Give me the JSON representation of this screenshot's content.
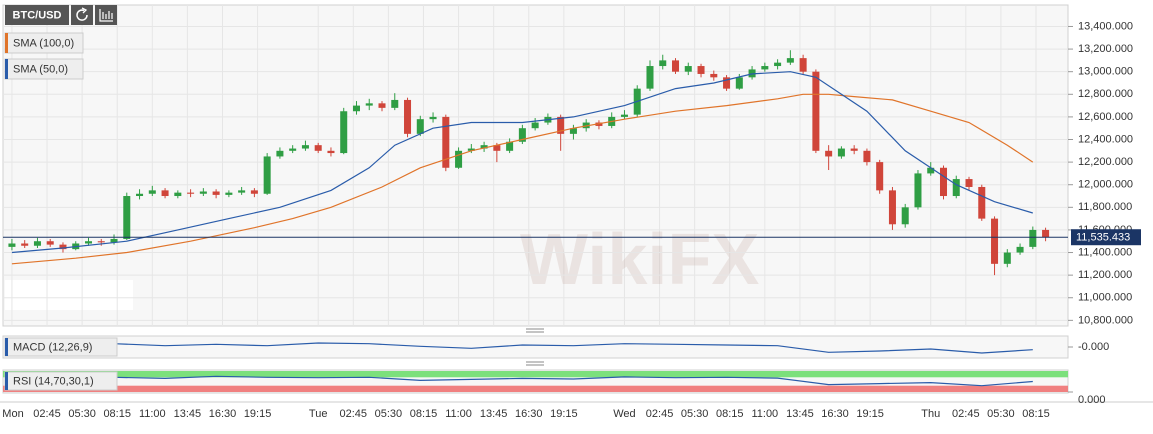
{
  "header": {
    "symbol": "BTC/USD"
  },
  "chart_data": [
    {
      "type": "candlestick",
      "watermark": "WikiFX",
      "up_color": "#2f9e44",
      "down_color": "#d0453a",
      "grid": true,
      "xlim": [
        -0.7,
        82.6
      ],
      "xticks": [
        {
          "value": 0,
          "label": "Mon"
        },
        {
          "value": 2.75,
          "label": "02:45"
        },
        {
          "value": 5.5,
          "label": "05:30"
        },
        {
          "value": 8.25,
          "label": "08:15"
        },
        {
          "value": 11,
          "label": "11:00"
        },
        {
          "value": 13.75,
          "label": "13:45"
        },
        {
          "value": 16.5,
          "label": "16:30"
        },
        {
          "value": 19.25,
          "label": "19:15"
        },
        {
          "value": 24,
          "label": "Tue"
        },
        {
          "value": 26.75,
          "label": "02:45"
        },
        {
          "value": 29.5,
          "label": "05:30"
        },
        {
          "value": 32.25,
          "label": "08:15"
        },
        {
          "value": 35,
          "label": "11:00"
        },
        {
          "value": 37.75,
          "label": "13:45"
        },
        {
          "value": 40.5,
          "label": "16:30"
        },
        {
          "value": 43.25,
          "label": "19:15"
        },
        {
          "value": 48,
          "label": "Wed"
        },
        {
          "value": 50.75,
          "label": "02:45"
        },
        {
          "value": 53.5,
          "label": "05:30"
        },
        {
          "value": 56.25,
          "label": "08:15"
        },
        {
          "value": 59,
          "label": "11:00"
        },
        {
          "value": 61.75,
          "label": "13:45"
        },
        {
          "value": 64.5,
          "label": "16:30"
        },
        {
          "value": 67.25,
          "label": "19:15"
        },
        {
          "value": 72,
          "label": "Thu"
        },
        {
          "value": 74.75,
          "label": "02:45"
        },
        {
          "value": 77.5,
          "label": "05:30"
        },
        {
          "value": 80.25,
          "label": "08:15"
        }
      ],
      "ylim": [
        10750,
        13590
      ],
      "yticks": [
        {
          "value": 10800,
          "label": "10,800.000"
        },
        {
          "value": 11000,
          "label": "11,000.000"
        },
        {
          "value": 11200,
          "label": "11,200.000"
        },
        {
          "value": 11400,
          "label": "11,400.000"
        },
        {
          "value": 11600,
          "label": "11,600.000"
        },
        {
          "value": 11800,
          "label": "11,800.000"
        },
        {
          "value": 12000,
          "label": "12,000.000"
        },
        {
          "value": 12200,
          "label": "12,200.000"
        },
        {
          "value": 12400,
          "label": "12,400.000"
        },
        {
          "value": 12600,
          "label": "12,600.000"
        },
        {
          "value": 12800,
          "label": "12,800.000"
        },
        {
          "value": 13000,
          "label": "13,000.000"
        },
        {
          "value": 13200,
          "label": "13,200.000"
        },
        {
          "value": 13400,
          "label": "13,400.000"
        }
      ],
      "last": {
        "value": 11535.433,
        "label": "11,535.433"
      },
      "x": [
        0,
        1,
        2,
        3,
        4,
        5,
        6,
        7,
        8,
        9,
        10,
        11,
        12,
        13,
        14,
        15,
        16,
        17,
        18,
        19,
        20,
        21,
        22,
        23,
        24,
        25,
        26,
        27,
        28,
        29,
        30,
        31,
        32,
        33,
        34,
        35,
        36,
        37,
        38,
        39,
        40,
        41,
        42,
        43,
        44,
        45,
        46,
        47,
        48,
        49,
        50,
        51,
        52,
        53,
        54,
        55,
        56,
        57,
        58,
        59,
        60,
        61,
        62,
        63,
        64,
        65,
        66,
        67,
        68,
        69,
        70,
        71,
        72,
        73,
        74,
        75,
        76,
        77,
        78,
        79,
        80,
        81
      ],
      "ohlc": [
        [
          11450,
          11520,
          11420,
          11480
        ],
        [
          11480,
          11510,
          11440,
          11460
        ],
        [
          11460,
          11530,
          11440,
          11500
        ],
        [
          11500,
          11520,
          11450,
          11470
        ],
        [
          11470,
          11490,
          11400,
          11430
        ],
        [
          11430,
          11500,
          11420,
          11480
        ],
        [
          11480,
          11530,
          11460,
          11500
        ],
        [
          11500,
          11520,
          11460,
          11490
        ],
        [
          11490,
          11560,
          11470,
          11520
        ],
        [
          11520,
          11930,
          11510,
          11900
        ],
        [
          11900,
          11960,
          11870,
          11920
        ],
        [
          11920,
          11990,
          11900,
          11950
        ],
        [
          11950,
          11970,
          11880,
          11900
        ],
        [
          11900,
          11950,
          11880,
          11930
        ],
        [
          11930,
          11960,
          11890,
          11920
        ],
        [
          11920,
          11970,
          11900,
          11940
        ],
        [
          11940,
          11960,
          11880,
          11910
        ],
        [
          11910,
          11950,
          11890,
          11930
        ],
        [
          11930,
          11980,
          11910,
          11950
        ],
        [
          11950,
          11970,
          11890,
          11920
        ],
        [
          11920,
          12280,
          11910,
          12250
        ],
        [
          12250,
          12330,
          12230,
          12300
        ],
        [
          12300,
          12350,
          12280,
          12320
        ],
        [
          12320,
          12390,
          12300,
          12350
        ],
        [
          12350,
          12370,
          12280,
          12300
        ],
        [
          12300,
          12330,
          12250,
          12280
        ],
        [
          12280,
          12680,
          12270,
          12650
        ],
        [
          12650,
          12740,
          12620,
          12700
        ],
        [
          12700,
          12760,
          12660,
          12720
        ],
        [
          12720,
          12740,
          12650,
          12680
        ],
        [
          12680,
          12810,
          12660,
          12750
        ],
        [
          12750,
          12770,
          12420,
          12450
        ],
        [
          12450,
          12610,
          12430,
          12580
        ],
        [
          12580,
          12640,
          12550,
          12600
        ],
        [
          12600,
          12620,
          12120,
          12150
        ],
        [
          12150,
          12330,
          12140,
          12300
        ],
        [
          12300,
          12360,
          12280,
          12320
        ],
        [
          12320,
          12380,
          12290,
          12350
        ],
        [
          12350,
          12370,
          12200,
          12300
        ],
        [
          12300,
          12410,
          12280,
          12380
        ],
        [
          12380,
          12530,
          12360,
          12500
        ],
        [
          12500,
          12590,
          12480,
          12550
        ],
        [
          12550,
          12630,
          12530,
          12600
        ],
        [
          12600,
          12620,
          12300,
          12450
        ],
        [
          12450,
          12530,
          12400,
          12500
        ],
        [
          12500,
          12580,
          12470,
          12550
        ],
        [
          12550,
          12570,
          12490,
          12520
        ],
        [
          12520,
          12640,
          12500,
          12600
        ],
        [
          12600,
          12660,
          12580,
          12620
        ],
        [
          12620,
          12880,
          12600,
          12850
        ],
        [
          12850,
          13100,
          12830,
          13050
        ],
        [
          13050,
          13150,
          13020,
          13100
        ],
        [
          13100,
          13120,
          12980,
          13000
        ],
        [
          13000,
          13080,
          12970,
          13050
        ],
        [
          13050,
          13070,
          12950,
          12980
        ],
        [
          12980,
          13010,
          12920,
          12950
        ],
        [
          12950,
          12970,
          12830,
          12850
        ],
        [
          12850,
          12980,
          12840,
          12950
        ],
        [
          12950,
          13050,
          12930,
          13020
        ],
        [
          13020,
          13080,
          13000,
          13050
        ],
        [
          13050,
          13110,
          13020,
          13080
        ],
        [
          13080,
          13190,
          13060,
          13120
        ],
        [
          13120,
          13150,
          12980,
          13000
        ],
        [
          13000,
          13020,
          12280,
          12300
        ],
        [
          12300,
          12350,
          12130,
          12250
        ],
        [
          12250,
          12340,
          12230,
          12320
        ],
        [
          12320,
          12350,
          12270,
          12300
        ],
        [
          12300,
          12320,
          12170,
          12200
        ],
        [
          12200,
          12220,
          11920,
          11950
        ],
        [
          11950,
          11980,
          11600,
          11650
        ],
        [
          11650,
          11830,
          11620,
          11800
        ],
        [
          11800,
          12130,
          11780,
          12100
        ],
        [
          12100,
          12200,
          12080,
          12150
        ],
        [
          12150,
          12170,
          11870,
          11900
        ],
        [
          11900,
          12080,
          11880,
          12050
        ],
        [
          12050,
          12070,
          11950,
          11980
        ],
        [
          11980,
          12000,
          11680,
          11700
        ],
        [
          11700,
          11720,
          11200,
          11300
        ],
        [
          11300,
          11430,
          11270,
          11400
        ],
        [
          11400,
          11480,
          11380,
          11450
        ],
        [
          11450,
          11630,
          11430,
          11600
        ],
        [
          11600,
          11620,
          11500,
          11535.433
        ]
      ],
      "series": [
        {
          "name": "SMA (100,0)",
          "color": "#e0742a",
          "x": [
            0,
            5,
            9,
            14,
            19,
            22,
            25,
            29,
            32,
            36,
            40,
            44,
            48,
            52,
            56,
            60,
            62,
            64,
            66,
            69,
            72,
            75,
            78,
            80
          ],
          "values": [
            11300,
            11350,
            11400,
            11500,
            11620,
            11700,
            11800,
            11980,
            12150,
            12300,
            12400,
            12500,
            12580,
            12650,
            12700,
            12760,
            12800,
            12800,
            12780,
            12750,
            12650,
            12550,
            12350,
            12200
          ]
        },
        {
          "name": "SMA (50,0)",
          "color": "#2a5caa",
          "x": [
            0,
            4,
            9,
            13,
            17,
            21,
            25,
            28,
            30,
            33,
            36,
            40,
            44,
            48,
            52,
            55,
            58,
            61,
            63,
            65,
            67,
            70,
            72,
            74,
            77,
            80
          ],
          "values": [
            11400,
            11440,
            11500,
            11600,
            11700,
            11800,
            11950,
            12150,
            12350,
            12500,
            12550,
            12550,
            12600,
            12700,
            12850,
            12900,
            12980,
            13000,
            12950,
            12800,
            12650,
            12300,
            12150,
            12000,
            11850,
            11750
          ]
        }
      ]
    },
    {
      "type": "line",
      "name": "MACD (12,26,9)",
      "color": "#2a5caa",
      "ylim": [
        -1.5,
        1.5
      ],
      "yticks": [
        {
          "value": 0,
          "label": "-0.000"
        }
      ],
      "x": [
        0,
        4,
        8,
        12,
        16,
        20,
        24,
        28,
        32,
        36,
        40,
        44,
        48,
        52,
        56,
        60,
        64,
        68,
        72,
        76,
        80
      ],
      "values": [
        0,
        0.3,
        0.5,
        0.2,
        0.4,
        0.2,
        0.6,
        0.5,
        0.1,
        -0.2,
        0.3,
        0.2,
        0.5,
        0.4,
        0.3,
        0.2,
        -0.8,
        -0.6,
        -0.3,
        -0.9,
        -0.4
      ]
    },
    {
      "type": "line",
      "name": "RSI (14,70,30,1)",
      "color": "#2a5caa",
      "ylim": [
        0,
        100
      ],
      "levels": [
        30,
        70
      ],
      "yticks": [
        {
          "value": 0,
          "label": "0.000"
        }
      ],
      "x": [
        0,
        4,
        8,
        12,
        16,
        20,
        24,
        28,
        32,
        36,
        40,
        44,
        48,
        52,
        56,
        60,
        64,
        68,
        72,
        76,
        80
      ],
      "values": [
        60,
        72,
        70,
        65,
        75,
        70,
        68,
        70,
        55,
        60,
        65,
        62,
        72,
        68,
        70,
        66,
        35,
        40,
        45,
        30,
        50
      ]
    }
  ]
}
